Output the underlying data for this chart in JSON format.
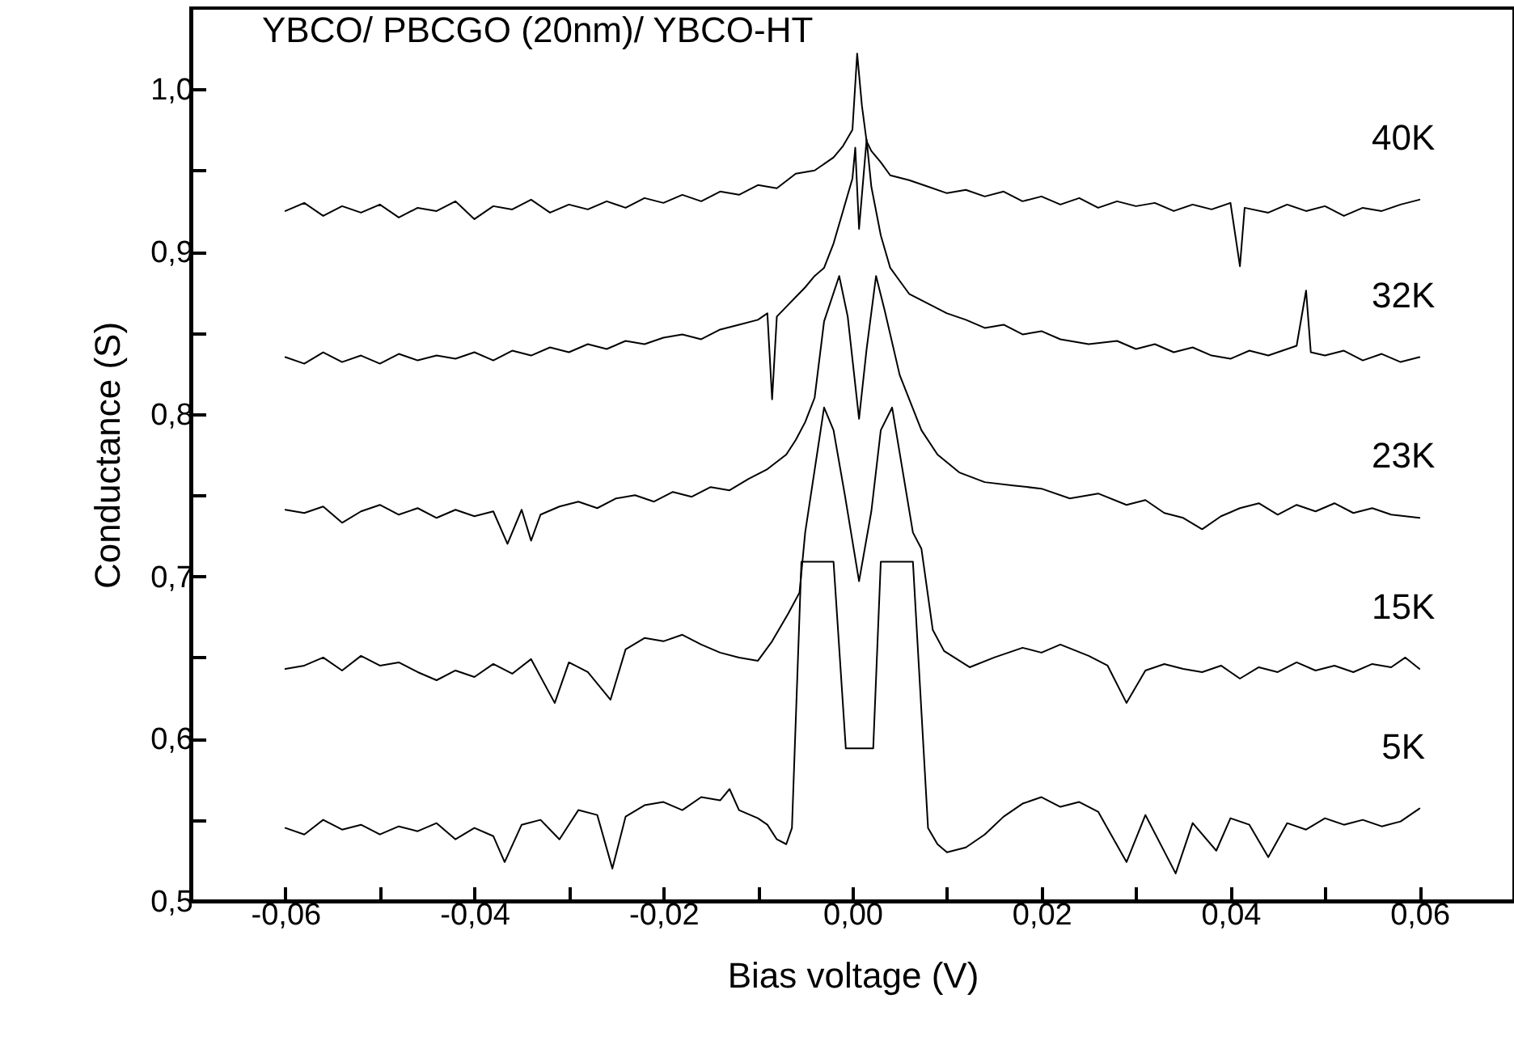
{
  "chart_data": {
    "type": "line",
    "title": "YBCO/ PBCGO (20nm)/ YBCO-HT",
    "xlabel": "Bias voltage (V)",
    "ylabel": "Conductance (S)",
    "xlim": [
      -0.07,
      0.07
    ],
    "ylim": [
      0.5,
      1.05
    ],
    "xticks": [
      {
        "value": -0.06,
        "label": "-0,06"
      },
      {
        "value": -0.05,
        "label": null
      },
      {
        "value": -0.04,
        "label": "-0,04"
      },
      {
        "value": -0.03,
        "label": null
      },
      {
        "value": -0.02,
        "label": "-0,02"
      },
      {
        "value": -0.01,
        "label": null
      },
      {
        "value": 0,
        "label": "0,00"
      },
      {
        "value": 0.01,
        "label": null
      },
      {
        "value": 0.02,
        "label": "0,02"
      },
      {
        "value": 0.03,
        "label": null
      },
      {
        "value": 0.04,
        "label": "0,04"
      },
      {
        "value": 0.05,
        "label": null
      },
      {
        "value": 0.06,
        "label": "0,06"
      }
    ],
    "yticks": [
      {
        "value": 0.5,
        "label": "0,5"
      },
      {
        "value": 0.55,
        "label": null
      },
      {
        "value": 0.6,
        "label": "0,6"
      },
      {
        "value": 0.65,
        "label": null
      },
      {
        "value": 0.7,
        "label": "0,7"
      },
      {
        "value": 0.75,
        "label": null
      },
      {
        "value": 0.8,
        "label": "0,8"
      },
      {
        "value": 0.85,
        "label": null
      },
      {
        "value": 0.9,
        "label": "0,9"
      },
      {
        "value": 0.95,
        "label": null
      },
      {
        "value": 1.0,
        "label": "1,0"
      }
    ],
    "line_style": "solid",
    "marker": "none",
    "series": [
      {
        "name": "40K",
        "color": "#000000",
        "x": [
          -0.06,
          -0.058,
          -0.056,
          -0.054,
          -0.052,
          -0.05,
          -0.048,
          -0.046,
          -0.044,
          -0.042,
          -0.04,
          -0.038,
          -0.036,
          -0.034,
          -0.032,
          -0.03,
          -0.028,
          -0.026,
          -0.024,
          -0.022,
          -0.02,
          -0.018,
          -0.016,
          -0.014,
          -0.012,
          -0.01,
          -0.008,
          -0.006,
          -0.004,
          -0.002,
          -0.001,
          0,
          0.0005,
          0.001,
          0.0015,
          0.002,
          0.003,
          0.004,
          0.006,
          0.008,
          0.01,
          0.012,
          0.014,
          0.016,
          0.018,
          0.02,
          0.022,
          0.024,
          0.026,
          0.028,
          0.03,
          0.032,
          0.034,
          0.036,
          0.038,
          0.04,
          0.041,
          0.0415,
          0.044,
          0.046,
          0.048,
          0.05,
          0.052,
          0.054,
          0.056,
          0.058,
          0.06
        ],
        "values": [
          0.925,
          0.93,
          0.922,
          0.928,
          0.924,
          0.929,
          0.921,
          0.927,
          0.925,
          0.931,
          0.92,
          0.928,
          0.926,
          0.932,
          0.924,
          0.929,
          0.926,
          0.931,
          0.927,
          0.933,
          0.93,
          0.935,
          0.931,
          0.937,
          0.935,
          0.941,
          0.939,
          0.948,
          0.95,
          0.958,
          0.965,
          0.975,
          1.022,
          0.99,
          0.968,
          0.962,
          0.955,
          0.947,
          0.944,
          0.94,
          0.936,
          0.938,
          0.934,
          0.937,
          0.931,
          0.934,
          0.929,
          0.933,
          0.927,
          0.931,
          0.928,
          0.93,
          0.925,
          0.929,
          0.926,
          0.93,
          0.891,
          0.927,
          0.924,
          0.929,
          0.925,
          0.928,
          0.922,
          0.927,
          0.925,
          0.929,
          0.932
        ]
      },
      {
        "name": "32K",
        "color": "#000000",
        "x": [
          -0.06,
          -0.058,
          -0.056,
          -0.054,
          -0.052,
          -0.05,
          -0.048,
          -0.046,
          -0.044,
          -0.042,
          -0.04,
          -0.038,
          -0.036,
          -0.034,
          -0.032,
          -0.03,
          -0.028,
          -0.026,
          -0.024,
          -0.022,
          -0.02,
          -0.018,
          -0.016,
          -0.014,
          -0.012,
          -0.01,
          -0.009,
          -0.0085,
          -0.008,
          -0.006,
          -0.005,
          -0.004,
          -0.003,
          -0.002,
          -0.001,
          0,
          0.0003,
          0.0007,
          0.0015,
          0.002,
          0.003,
          0.004,
          0.005,
          0.006,
          0.008,
          0.01,
          0.012,
          0.014,
          0.016,
          0.018,
          0.02,
          0.022,
          0.025,
          0.028,
          0.03,
          0.032,
          0.034,
          0.036,
          0.038,
          0.04,
          0.042,
          0.044,
          0.046,
          0.047,
          0.048,
          0.0485,
          0.05,
          0.052,
          0.054,
          0.056,
          0.058,
          0.06
        ],
        "values": [
          0.835,
          0.831,
          0.838,
          0.832,
          0.836,
          0.831,
          0.837,
          0.833,
          0.836,
          0.834,
          0.838,
          0.833,
          0.839,
          0.836,
          0.841,
          0.838,
          0.843,
          0.84,
          0.845,
          0.843,
          0.847,
          0.849,
          0.846,
          0.852,
          0.855,
          0.858,
          0.862,
          0.809,
          0.86,
          0.872,
          0.878,
          0.885,
          0.89,
          0.905,
          0.925,
          0.945,
          0.964,
          0.914,
          0.969,
          0.94,
          0.91,
          0.89,
          0.882,
          0.874,
          0.868,
          0.862,
          0.858,
          0.853,
          0.855,
          0.849,
          0.851,
          0.846,
          0.843,
          0.845,
          0.84,
          0.843,
          0.838,
          0.841,
          0.836,
          0.834,
          0.839,
          0.836,
          0.84,
          0.842,
          0.876,
          0.838,
          0.836,
          0.839,
          0.833,
          0.837,
          0.832,
          0.835
        ]
      },
      {
        "name": "23K",
        "color": "#000000",
        "x": [
          -0.06,
          -0.058,
          -0.056,
          -0.054,
          -0.052,
          -0.05,
          -0.048,
          -0.046,
          -0.044,
          -0.042,
          -0.04,
          -0.038,
          -0.0365,
          -0.035,
          -0.034,
          -0.033,
          -0.031,
          -0.029,
          -0.027,
          -0.025,
          -0.023,
          -0.021,
          -0.019,
          -0.017,
          -0.015,
          -0.013,
          -0.011,
          -0.009,
          -0.007,
          -0.006,
          -0.005,
          -0.004,
          -0.003,
          -0.0014,
          -0.0005,
          0.0007,
          0.0015,
          0.0025,
          0.0034,
          0.005,
          0.0073,
          0.009,
          0.0113,
          0.014,
          0.017,
          0.02,
          0.023,
          0.026,
          0.029,
          0.031,
          0.033,
          0.035,
          0.037,
          0.039,
          0.041,
          0.043,
          0.045,
          0.047,
          0.049,
          0.051,
          0.053,
          0.055,
          0.057,
          0.06
        ],
        "values": [
          0.741,
          0.739,
          0.743,
          0.733,
          0.74,
          0.744,
          0.738,
          0.742,
          0.736,
          0.741,
          0.737,
          0.74,
          0.72,
          0.741,
          0.722,
          0.738,
          0.743,
          0.746,
          0.742,
          0.748,
          0.75,
          0.746,
          0.752,
          0.749,
          0.755,
          0.753,
          0.76,
          0.766,
          0.775,
          0.784,
          0.795,
          0.81,
          0.857,
          0.885,
          0.86,
          0.797,
          0.84,
          0.885,
          0.864,
          0.824,
          0.79,
          0.775,
          0.764,
          0.758,
          0.756,
          0.754,
          0.748,
          0.751,
          0.744,
          0.747,
          0.739,
          0.736,
          0.729,
          0.737,
          0.742,
          0.745,
          0.738,
          0.744,
          0.74,
          0.745,
          0.739,
          0.742,
          0.738,
          0.736
        ]
      },
      {
        "name": "15K",
        "color": "#000000",
        "x": [
          -0.06,
          -0.058,
          -0.056,
          -0.054,
          -0.052,
          -0.05,
          -0.048,
          -0.046,
          -0.044,
          -0.042,
          -0.04,
          -0.038,
          -0.036,
          -0.034,
          -0.0315,
          -0.03,
          -0.028,
          -0.0256,
          -0.024,
          -0.022,
          -0.02,
          -0.018,
          -0.016,
          -0.014,
          -0.012,
          -0.01,
          -0.0085,
          -0.0068,
          -0.0056,
          -0.005,
          -0.003,
          -0.002,
          -0.0008,
          0.0007,
          0.002,
          0.003,
          0.0042,
          0.0064,
          0.0073,
          0.0085,
          0.0097,
          0.0124,
          0.015,
          0.018,
          0.02,
          0.022,
          0.025,
          0.027,
          0.029,
          0.031,
          0.033,
          0.035,
          0.037,
          0.039,
          0.041,
          0.043,
          0.045,
          0.047,
          0.049,
          0.051,
          0.053,
          0.055,
          0.057,
          0.0585,
          0.06
        ],
        "values": [
          0.643,
          0.645,
          0.65,
          0.642,
          0.651,
          0.645,
          0.647,
          0.641,
          0.636,
          0.642,
          0.638,
          0.646,
          0.64,
          0.649,
          0.622,
          0.647,
          0.641,
          0.624,
          0.655,
          0.662,
          0.66,
          0.664,
          0.658,
          0.653,
          0.65,
          0.648,
          0.66,
          0.677,
          0.69,
          0.727,
          0.804,
          0.79,
          0.75,
          0.697,
          0.74,
          0.79,
          0.804,
          0.727,
          0.717,
          0.667,
          0.654,
          0.644,
          0.65,
          0.656,
          0.653,
          0.658,
          0.651,
          0.645,
          0.622,
          0.642,
          0.646,
          0.643,
          0.641,
          0.645,
          0.637,
          0.644,
          0.641,
          0.647,
          0.642,
          0.645,
          0.641,
          0.646,
          0.644,
          0.65,
          0.643
        ]
      },
      {
        "name": "5K",
        "color": "#000000",
        "x": [
          -0.06,
          -0.058,
          -0.056,
          -0.054,
          -0.052,
          -0.05,
          -0.048,
          -0.046,
          -0.044,
          -0.042,
          -0.04,
          -0.038,
          -0.0368,
          -0.035,
          -0.033,
          -0.031,
          -0.029,
          -0.027,
          -0.0254,
          -0.024,
          -0.022,
          -0.02,
          -0.018,
          -0.016,
          -0.014,
          -0.013,
          -0.012,
          -0.01,
          -0.009,
          -0.008,
          -0.007,
          -0.0064,
          -0.0054,
          -0.002,
          -0.0007,
          0.0022,
          0.003,
          0.0064,
          0.008,
          0.009,
          0.01,
          0.012,
          0.014,
          0.016,
          0.018,
          0.02,
          0.022,
          0.024,
          0.026,
          0.029,
          0.031,
          0.0342,
          0.036,
          0.0385,
          0.04,
          0.042,
          0.044,
          0.046,
          0.048,
          0.05,
          0.052,
          0.054,
          0.056,
          0.058,
          0.06
        ],
        "values": [
          0.545,
          0.541,
          0.55,
          0.544,
          0.547,
          0.541,
          0.546,
          0.543,
          0.548,
          0.538,
          0.545,
          0.54,
          0.524,
          0.547,
          0.55,
          0.538,
          0.556,
          0.553,
          0.52,
          0.552,
          0.559,
          0.561,
          0.556,
          0.564,
          0.562,
          0.569,
          0.556,
          0.551,
          0.547,
          0.538,
          0.535,
          0.545,
          0.709,
          0.709,
          0.594,
          0.594,
          0.709,
          0.709,
          0.545,
          0.535,
          0.53,
          0.533,
          0.541,
          0.552,
          0.56,
          0.564,
          0.558,
          0.561,
          0.555,
          0.524,
          0.553,
          0.517,
          0.548,
          0.531,
          0.551,
          0.547,
          0.527,
          0.548,
          0.544,
          0.551,
          0.547,
          0.55,
          0.546,
          0.549,
          0.557
        ]
      }
    ]
  }
}
